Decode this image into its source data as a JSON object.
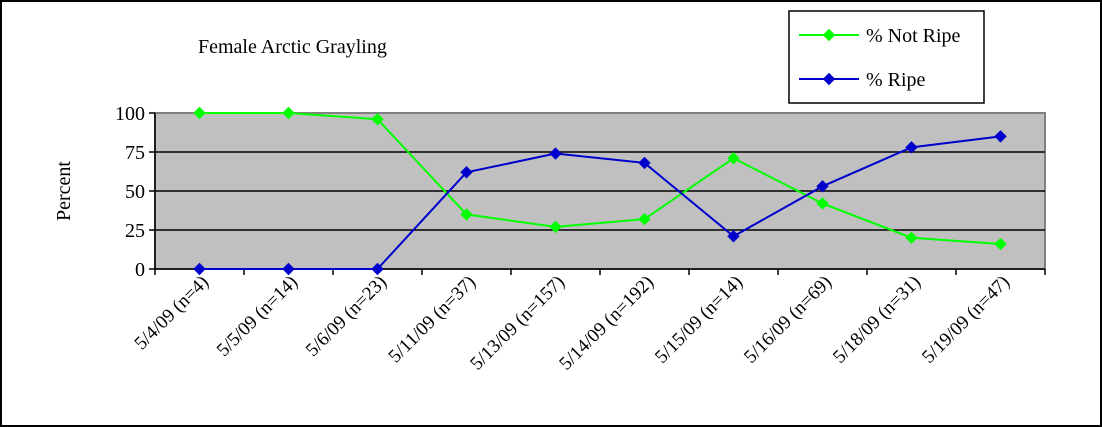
{
  "chart_data": {
    "type": "line",
    "title": "Female Arctic Grayling",
    "xlabel": "",
    "ylabel": "Percent",
    "categories": [
      "5/4/09 (n=4)",
      "5/5/09 (n=14)",
      "5/6/09 (n=23)",
      "5/11/09 (n=37)",
      "5/13/09 (n=157)",
      "5/14/09 (n=192)",
      "5/15/09 (n=14)",
      "5/16/09 (n=69)",
      "5/18/09 (n=31)",
      "5/19/09 (n=47)"
    ],
    "ylim": [
      0,
      100
    ],
    "yticks": [
      0,
      25,
      50,
      75,
      100
    ],
    "grid": true,
    "legend_position": "top-right",
    "series": [
      {
        "name": "% Not Ripe",
        "color": "#00ff00",
        "values": [
          100,
          100,
          96,
          35,
          27,
          32,
          71,
          42,
          20,
          16
        ]
      },
      {
        "name": "% Ripe",
        "color": "#0000cc",
        "values": [
          0,
          0,
          0,
          62,
          74,
          68,
          21,
          53,
          78,
          85
        ]
      }
    ],
    "plot_background": "#c0c0c0"
  }
}
